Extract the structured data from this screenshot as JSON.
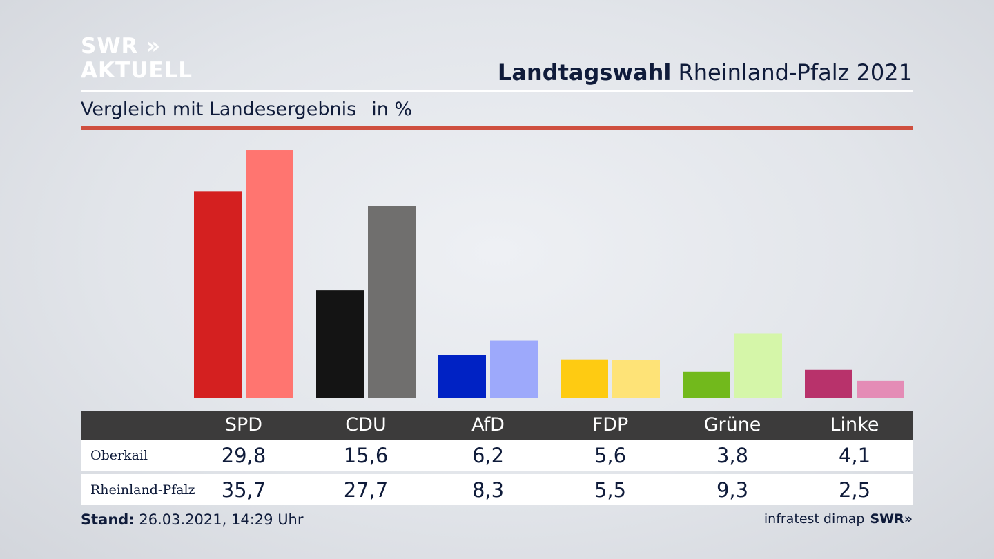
{
  "logo": {
    "line1": "SWR »",
    "line2": "AKTUELL"
  },
  "header": {
    "title_bold": "Landtagswahl",
    "title_rest": "Rheinland-Pfalz 2021"
  },
  "subtitle": {
    "text": "Vergleich mit Landesergebnis",
    "unit": "in %"
  },
  "chart_data": {
    "type": "bar",
    "categories": [
      "SPD",
      "CDU",
      "AfD",
      "FDP",
      "Grüne",
      "Linke"
    ],
    "series": [
      {
        "name": "Oberkail",
        "values": [
          29.8,
          15.6,
          6.2,
          5.6,
          3.8,
          4.1
        ],
        "colors": [
          "#d42020",
          "#141414",
          "#0022c4",
          "#fecb12",
          "#72b91c",
          "#b8326b"
        ]
      },
      {
        "name": "Rheinland-Pfalz",
        "values": [
          35.7,
          27.7,
          8.3,
          5.5,
          9.3,
          2.5
        ],
        "colors": [
          "#ff7570",
          "#706f6e",
          "#9da9fb",
          "#fee377",
          "#d5f6a9",
          "#e48cb6"
        ]
      }
    ],
    "ylim": [
      0,
      36
    ],
    "table": {
      "rows": [
        {
          "label": "Oberkail",
          "values": [
            "29,8",
            "15,6",
            "6,2",
            "5,6",
            "3,8",
            "4,1"
          ]
        },
        {
          "label": "Rheinland-Pfalz",
          "values": [
            "35,7",
            "27,7",
            "8,3",
            "5,5",
            "9,3",
            "2,5"
          ]
        }
      ]
    }
  },
  "footer": {
    "stand_label": "Stand:",
    "stand_value": "26.03.2021, 14:29 Uhr",
    "source": "infratest dimap",
    "brand": "SWR»"
  }
}
